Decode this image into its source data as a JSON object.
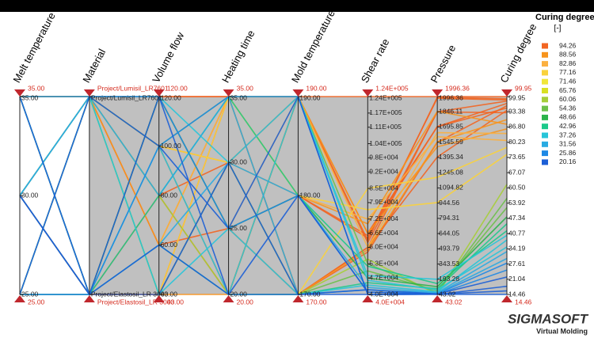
{
  "chart_data": {
    "type": "parallel",
    "axes": [
      {
        "name": "Melt temperature",
        "lim": [
          25,
          35
        ],
        "ticks": [
          {
            "value": 35,
            "label": "35.00"
          },
          {
            "value": 30,
            "label": "30.00"
          },
          {
            "value": 25,
            "label": "25.00"
          }
        ]
      },
      {
        "name": "Material",
        "lim": [
          0,
          1
        ],
        "categories": [
          "Project/Elastosil_LR 3003",
          "Project/Lumisil_LR7601"
        ],
        "ticks": [
          1,
          0
        ]
      },
      {
        "name": "Volume flow",
        "lim": [
          40,
          120
        ],
        "ticks": [
          {
            "value": 120,
            "label": "120.00"
          },
          {
            "value": 100,
            "label": "100.00"
          },
          {
            "value": 80,
            "label": "80.00"
          },
          {
            "value": 60,
            "label": "60.00"
          },
          {
            "value": 40,
            "label": "40.00"
          }
        ]
      },
      {
        "name": "Heating time",
        "lim": [
          20,
          35
        ],
        "ticks": [
          {
            "value": 35,
            "label": "35.00"
          },
          {
            "value": 30,
            "label": "30.00"
          },
          {
            "value": 25,
            "label": "25.00"
          },
          {
            "value": 20,
            "label": "20.00"
          }
        ]
      },
      {
        "name": "Mold temperature",
        "lim": [
          170,
          190
        ],
        "ticks": [
          {
            "value": 190,
            "label": "190.00"
          },
          {
            "value": 180,
            "label": "180.00"
          },
          {
            "value": 170,
            "label": "170.00"
          }
        ]
      },
      {
        "name": "Shear rate",
        "lim": [
          40000,
          124000
        ],
        "ticks": [
          {
            "value": 124000,
            "label": "1.24E+005"
          },
          {
            "value": 117000,
            "label": "1.17E+005"
          },
          {
            "value": 111000,
            "label": "1.11E+005"
          },
          {
            "value": 104000,
            "label": "1.04E+005"
          },
          {
            "value": 98000,
            "label": "9.8E+004"
          },
          {
            "value": 92000,
            "label": "9.2E+004"
          },
          {
            "value": 85000,
            "label": "8.5E+004"
          },
          {
            "value": 79000,
            "label": "7.9E+004"
          },
          {
            "value": 72000,
            "label": "7.2E+004"
          },
          {
            "value": 66000,
            "label": "6.6E+004"
          },
          {
            "value": 60000,
            "label": "6.0E+004"
          },
          {
            "value": 53000,
            "label": "5.3E+004"
          },
          {
            "value": 47000,
            "label": "4.7E+004"
          },
          {
            "value": 40000,
            "label": "4.0E+004"
          }
        ]
      },
      {
        "name": "Pressure",
        "lim": [
          43.02,
          1996.36
        ],
        "ticks": [
          1996.36,
          1846.11,
          1695.85,
          1545.59,
          1395.34,
          1245.08,
          1094.82,
          944.56,
          794.31,
          644.05,
          493.79,
          343.53,
          193.28,
          43.02
        ]
      },
      {
        "name": "Curing degree",
        "lim": [
          14.46,
          99.95
        ],
        "ticks": [
          99.95,
          93.38,
          {
            "value": 86.8,
            "label": "86.80"
          },
          80.23,
          73.65,
          67.07,
          {
            "value": 60.5,
            "label": "60.50"
          },
          53.92,
          47.34,
          40.77,
          34.19,
          27.61,
          21.04,
          14.46
        ]
      }
    ],
    "series": [
      {
        "values": [
          35,
          1,
          120,
          35,
          190,
          124000,
          1996.36,
          99.95
        ]
      },
      {
        "values": [
          35,
          0,
          40,
          35,
          170,
          60000,
          1846,
          98
        ]
      },
      {
        "values": [
          30,
          1,
          80,
          30,
          190,
          66000,
          1700,
          97
        ]
      },
      {
        "values": [
          25,
          1,
          100,
          20,
          190,
          63000,
          1990,
          99
        ]
      },
      {
        "values": [
          35,
          1,
          60,
          25,
          170,
          58000,
          1545,
          96
        ]
      },
      {
        "values": [
          30,
          0,
          120,
          35,
          180,
          64000,
          1980,
          98.5
        ]
      },
      {
        "values": [
          25,
          0,
          40,
          30,
          170,
          60000,
          1400,
          94
        ]
      },
      {
        "values": [
          35,
          0,
          80,
          20,
          190,
          62000,
          1845,
          93
        ]
      },
      {
        "values": [
          30,
          1,
          120,
          25,
          180,
          65000,
          1700,
          95
        ]
      },
      {
        "values": [
          25,
          1,
          60,
          35,
          170,
          59000,
          1550,
          90
        ]
      },
      {
        "values": [
          35,
          1,
          100,
          30,
          180,
          70000,
          1850,
          88
        ]
      },
      {
        "values": [
          30,
          0,
          40,
          20,
          190,
          66000,
          1500,
          86
        ]
      },
      {
        "values": [
          25,
          0,
          120,
          25,
          190,
          60000,
          1640,
          84
        ]
      },
      {
        "values": [
          35,
          0,
          60,
          35,
          180,
          72000,
          1600,
          81
        ]
      },
      {
        "values": [
          25,
          1,
          40,
          35,
          180,
          76000,
          950,
          75
        ]
      },
      {
        "values": [
          35,
          0,
          100,
          30,
          170,
          85000,
          1200,
          78
        ]
      },
      {
        "values": [
          25,
          1,
          80,
          20,
          170,
          55000,
          43.02,
          62
        ]
      },
      {
        "values": [
          30,
          1,
          100,
          35,
          190,
          53000,
          60,
          56
        ]
      },
      {
        "values": [
          35,
          1,
          40,
          30,
          170,
          50000,
          80,
          52
        ]
      },
      {
        "values": [
          25,
          0,
          120,
          25,
          180,
          47000,
          120,
          48
        ]
      },
      {
        "values": [
          30,
          0,
          60,
          20,
          170,
          45000,
          100,
          45
        ]
      },
      {
        "values": [
          35,
          0,
          80,
          35,
          180,
          52000,
          150,
          42
        ]
      },
      {
        "values": [
          25,
          1,
          120,
          30,
          190,
          48000,
          193.28,
          40
        ]
      },
      {
        "values": [
          30,
          1,
          40,
          25,
          170,
          44000,
          70,
          38
        ]
      },
      {
        "values": [
          35,
          0,
          100,
          20,
          190,
          46000,
          90,
          35
        ]
      },
      {
        "values": [
          25,
          0,
          60,
          30,
          180,
          43000,
          60,
          33
        ]
      },
      {
        "values": [
          30,
          1,
          80,
          35,
          170,
          42000,
          55,
          30
        ]
      },
      {
        "values": [
          35,
          1,
          120,
          25,
          180,
          41000,
          50,
          28
        ]
      },
      {
        "values": [
          25,
          0,
          100,
          35,
          190,
          40000,
          45,
          25
        ]
      },
      {
        "values": [
          30,
          0,
          40,
          30,
          170,
          42000,
          48,
          22
        ]
      },
      {
        "values": [
          35,
          0,
          60,
          20,
          180,
          41000,
          43.02,
          18
        ]
      },
      {
        "values": [
          25,
          1,
          100,
          25,
          190,
          40000,
          44,
          14.46
        ]
      },
      {
        "values": [
          30,
          0,
          120,
          20,
          170,
          40000,
          46,
          16
        ]
      }
    ],
    "legend": {
      "title": "Curing degree",
      "unit": "[-]",
      "entries": [
        {
          "value": 94.26,
          "color": "#f26522"
        },
        {
          "value": 88.56,
          "color": "#f7941d"
        },
        {
          "value": 82.86,
          "color": "#fbb040"
        },
        {
          "value": 77.16,
          "color": "#f9d23c"
        },
        {
          "value": 71.46,
          "color": "#f1e63a"
        },
        {
          "value": 65.76,
          "color": "#d9e021"
        },
        {
          "value": 60.06,
          "color": "#a6ce39"
        },
        {
          "value": 54.36,
          "color": "#6cc04a"
        },
        {
          "value": 48.66,
          "color": "#2bb34a"
        },
        {
          "value": 42.96,
          "color": "#1cc98a"
        },
        {
          "value": 37.26,
          "color": "#27c5d9"
        },
        {
          "value": 31.56,
          "color": "#29abe2"
        },
        {
          "value": 25.86,
          "color": "#1e88e5"
        },
        {
          "value": 20.16,
          "color": "#1c5fd6"
        }
      ]
    },
    "brand": "SIGMASOFT",
    "brand_tagline": "Virtual Molding"
  }
}
